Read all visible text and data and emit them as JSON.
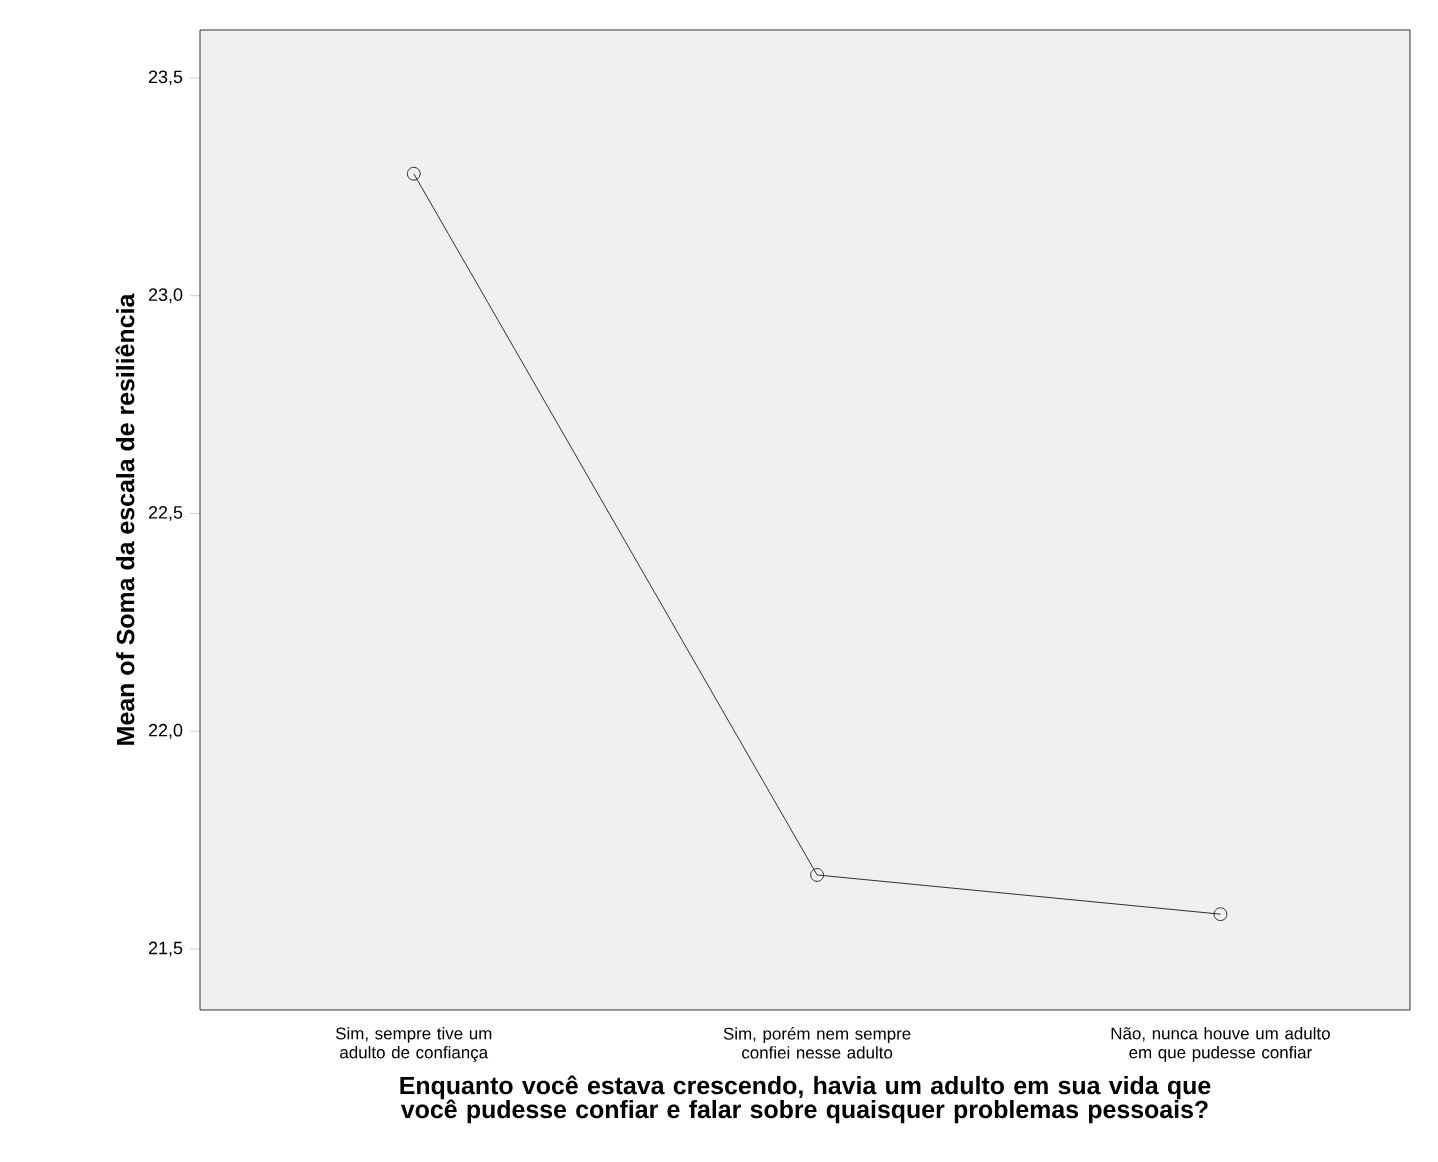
{
  "chart_data": {
    "type": "line",
    "xlabel": "Enquanto você estava crescendo, havia um adulto em sua vida que você pudesse confiar e falar sobre quaisquer problemas pessoais?",
    "ylabel": "Mean of Soma da escala de resiliência",
    "categories": [
      "Sim, sempre tive um adulto de confiança",
      "Sim, porém nem sempre confiei nesse adulto",
      "Não, nunca houve um adulto em que pudesse confiar"
    ],
    "values": [
      23.28,
      21.67,
      21.58
    ],
    "color": "#000000",
    "marker": "circle",
    "line_style": "solid",
    "ylim": [
      21.36,
      23.61
    ],
    "yticks": [
      {
        "value": 21.5,
        "label": "21,5"
      },
      {
        "value": 22.0,
        "label": "22,0"
      },
      {
        "value": 22.5,
        "label": "22,5"
      },
      {
        "value": 23.0,
        "label": "23,0"
      },
      {
        "value": 23.5,
        "label": "23,5"
      }
    ],
    "grid": false
  }
}
